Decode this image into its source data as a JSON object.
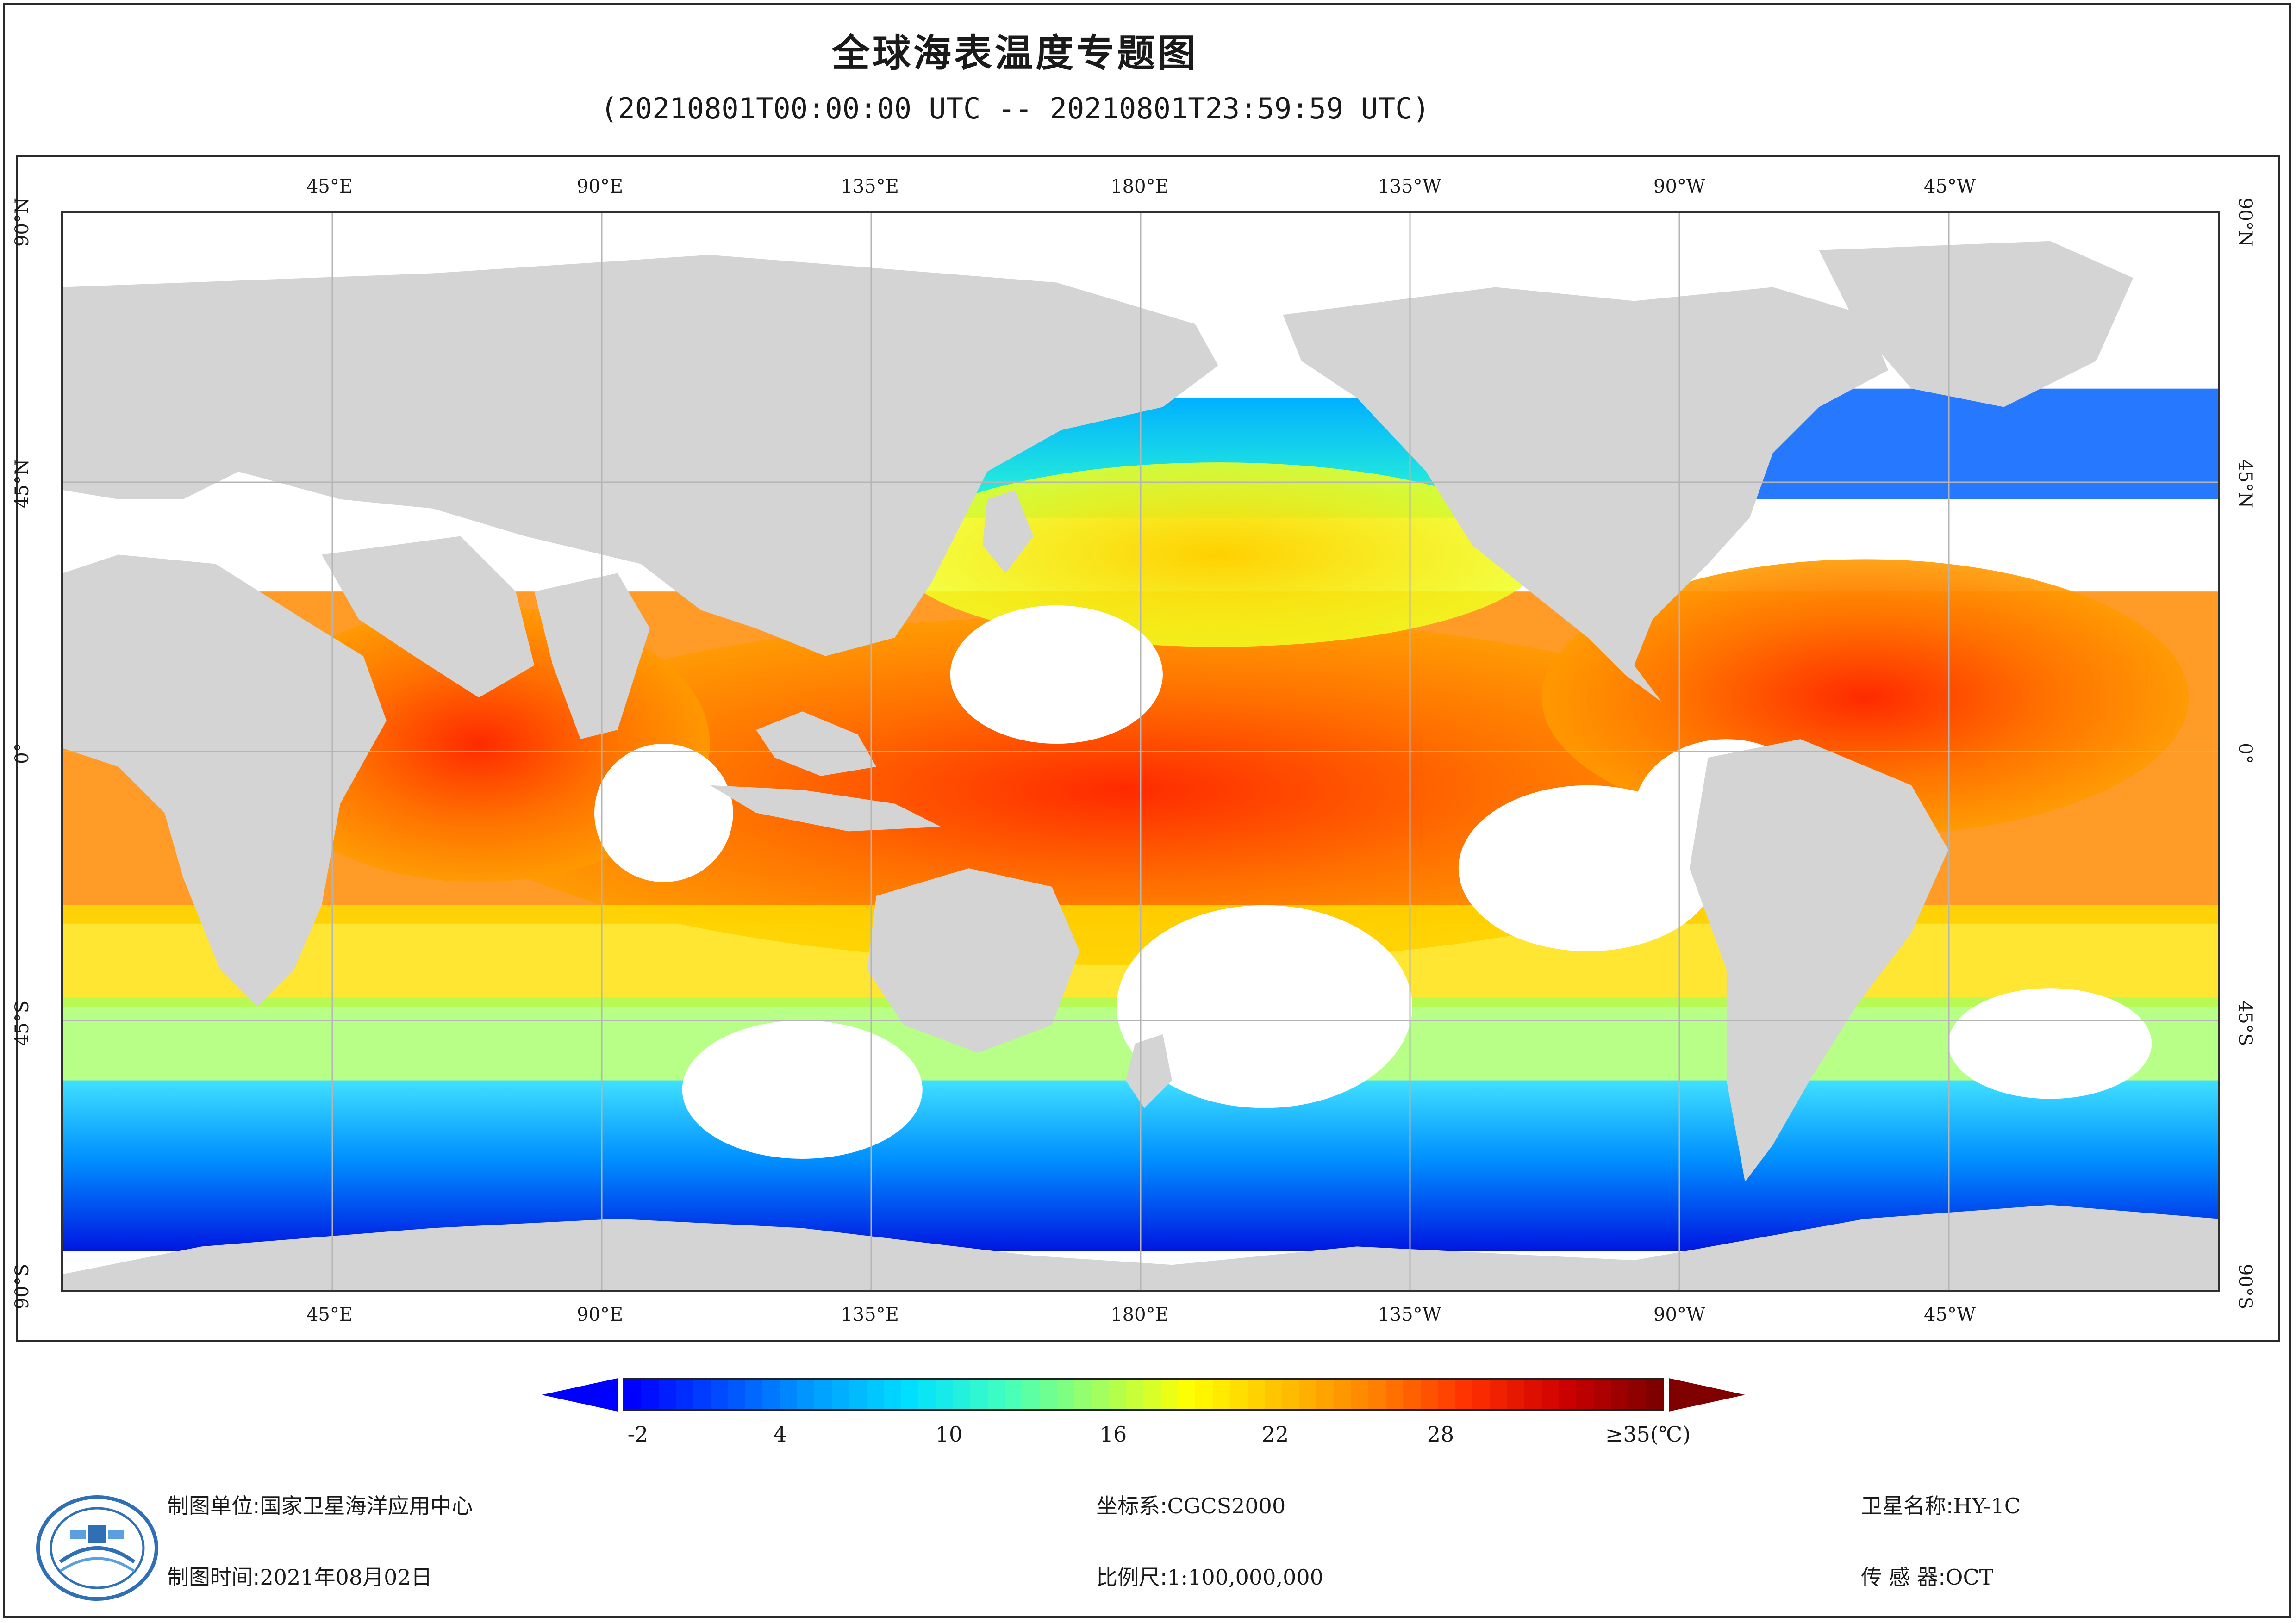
{
  "map": {
    "title": "全球海表温度专题图",
    "subtitle": "(20210801T00:00:00 UTC -- 20210801T23:59:59 UTC)",
    "lon_labels": [
      "45°E",
      "90°E",
      "135°E",
      "180°E",
      "135°W",
      "90°W",
      "45°W"
    ],
    "lat_labels": [
      "90°N",
      "45°N",
      "0°",
      "45°S",
      "90°S"
    ],
    "colors": {
      "land": "#d4d4d4",
      "grid": "#b5b5b5",
      "ocean_no_data": "#ffffff"
    }
  },
  "legend": {
    "labels": [
      "-2",
      "4",
      "10",
      "16",
      "22",
      "28",
      "≥35(℃)"
    ],
    "min_color": "#0000ff",
    "max_color": "#800000",
    "colorscale": [
      "#0000ff",
      "#0050ff",
      "#00a0ff",
      "#00e0ff",
      "#40ffc0",
      "#a0ff60",
      "#ffff00",
      "#ffc000",
      "#ff8000",
      "#ff3000",
      "#d00000",
      "#800000"
    ]
  },
  "info": {
    "unit_label": "制图单位:",
    "unit_value": "国家卫星海洋应用中心",
    "time_label": "制图时间:",
    "time_value": "2021年08月02日",
    "crs_label": "坐标系:",
    "crs_value": "CGCS2000",
    "scale_label": "比例尺:",
    "scale_value": "1:100,000,000",
    "satellite_label": "卫星名称:",
    "satellite_value": "HY-1C",
    "sensor_label": "传 感 器:",
    "sensor_value": "OCT"
  },
  "logo_icon": "nsoas-satellite-logo-icon"
}
